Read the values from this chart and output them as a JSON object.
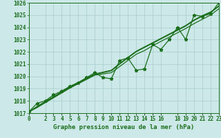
{
  "background_color": "#cce8e8",
  "grid_color": "#aacccc",
  "line_color": "#1a6e1a",
  "title": "Graphe pression niveau de la mer (hPa)",
  "ylim": [
    1017,
    1026
  ],
  "xlim": [
    0,
    23
  ],
  "yticks": [
    1017,
    1018,
    1019,
    1020,
    1021,
    1022,
    1023,
    1024,
    1025,
    1026
  ],
  "xtick_positions": [
    0,
    2,
    3,
    4,
    5,
    6,
    7,
    8,
    9,
    10,
    11,
    12,
    13,
    14,
    15,
    16,
    18,
    19,
    20,
    21,
    22,
    23
  ],
  "xtick_labels": [
    "0",
    "2",
    "3",
    "4",
    "5",
    "6",
    "7",
    "8",
    "9",
    "10",
    "11",
    "12",
    "13",
    "14",
    "15",
    "16",
    "18",
    "19",
    "20",
    "21",
    "22",
    "23"
  ],
  "smooth1_x": [
    0,
    1,
    2,
    3,
    4,
    5,
    6,
    7,
    8,
    9,
    10,
    11,
    12,
    13,
    14,
    15,
    16,
    17,
    18,
    19,
    20,
    21,
    22,
    23
  ],
  "smooth1_y": [
    1017.1,
    1017.45,
    1017.85,
    1018.25,
    1018.65,
    1019.05,
    1019.4,
    1019.75,
    1020.1,
    1020.2,
    1020.3,
    1020.8,
    1021.3,
    1021.8,
    1022.1,
    1022.5,
    1022.85,
    1023.2,
    1023.55,
    1023.9,
    1024.3,
    1024.65,
    1025.0,
    1025.5
  ],
  "smooth2_x": [
    0,
    1,
    2,
    3,
    4,
    5,
    6,
    7,
    8,
    9,
    10,
    11,
    12,
    13,
    14,
    15,
    16,
    17,
    18,
    19,
    20,
    21,
    22,
    23
  ],
  "smooth2_y": [
    1017.1,
    1017.5,
    1017.9,
    1018.3,
    1018.7,
    1019.1,
    1019.45,
    1019.8,
    1020.15,
    1020.3,
    1020.45,
    1021.0,
    1021.5,
    1022.0,
    1022.35,
    1022.7,
    1023.05,
    1023.4,
    1023.75,
    1024.1,
    1024.55,
    1024.9,
    1025.2,
    1025.7
  ],
  "smooth3_x": [
    0,
    1,
    2,
    3,
    4,
    5,
    6,
    7,
    8,
    9,
    10,
    11,
    12,
    13,
    14,
    15,
    16,
    17,
    18,
    19,
    20,
    21,
    22,
    23
  ],
  "smooth3_y": [
    1017.1,
    1017.55,
    1017.95,
    1018.35,
    1018.75,
    1019.15,
    1019.5,
    1019.85,
    1020.2,
    1020.35,
    1020.5,
    1021.05,
    1021.55,
    1022.05,
    1022.4,
    1022.75,
    1023.1,
    1023.45,
    1023.8,
    1024.15,
    1024.6,
    1024.95,
    1025.25,
    1025.75
  ],
  "zigzag_x": [
    0,
    1,
    2,
    3,
    4,
    5,
    6,
    7,
    8,
    9,
    10,
    11,
    12,
    13,
    14,
    15,
    16,
    17,
    18,
    19,
    20,
    21,
    22,
    23
  ],
  "zigzag_y": [
    1017.1,
    1017.8,
    1018.0,
    1018.5,
    1018.8,
    1019.2,
    1019.5,
    1019.9,
    1020.3,
    1019.9,
    1019.8,
    1021.3,
    1021.5,
    1020.5,
    1020.6,
    1022.6,
    1022.2,
    1023.0,
    1024.0,
    1023.0,
    1025.0,
    1024.9,
    1025.1,
    1026.0
  ]
}
